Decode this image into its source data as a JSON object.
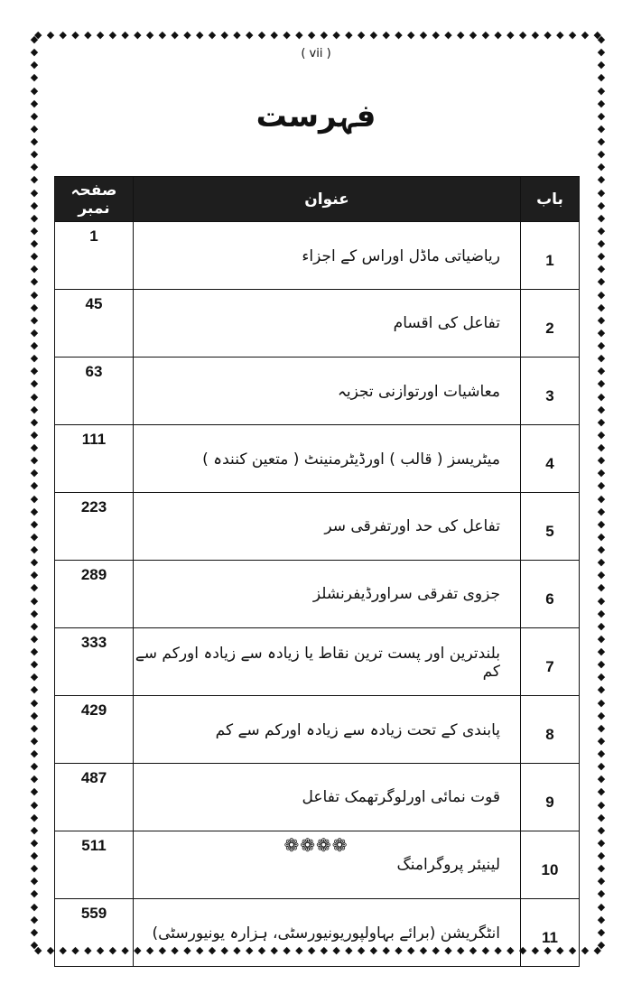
{
  "page_number": "( vii )",
  "title": "فہرست",
  "table": {
    "headers": {
      "page": "صفحہ نمبر",
      "title": "عنوان",
      "chapter": "باب"
    },
    "rows": [
      {
        "chapter": "1",
        "title": "ریاضیاتی ماڈل اوراس کے اجزاء",
        "page": "1"
      },
      {
        "chapter": "2",
        "title": "تفاعل کی اقسام",
        "page": "45"
      },
      {
        "chapter": "3",
        "title": "معاشیات اورتوازنی تجزیہ",
        "page": "63"
      },
      {
        "chapter": "4",
        "title": "میٹریسز ( قالب ) اورڈیٹرمنینٹ ( متعین کنندہ )",
        "page": "111"
      },
      {
        "chapter": "5",
        "title": "تفاعل کی حد اورتفرقی سر",
        "page": "223"
      },
      {
        "chapter": "6",
        "title": "جزوی تفرقی سراورڈیفرنشلز",
        "page": "289"
      },
      {
        "chapter": "7",
        "title": "بلندترین اور پست ترین نقاط یا زیادہ سے زیادہ اورکم سے کم",
        "page": "333"
      },
      {
        "chapter": "8",
        "title": "پابندی کے تحت زیادہ سے زیادہ اورکم سے کم",
        "page": "429"
      },
      {
        "chapter": "9",
        "title": "قوت نمائی اورلوگرتھمک تفاعل",
        "page": "487"
      },
      {
        "chapter": "10",
        "title": "لینیئر پروگرامنگ",
        "page": "511"
      },
      {
        "chapter": "11",
        "title": "انٹگریشن     (برائے بہاولپوریونیورسٹی، ہزارہ یونیورسٹی)",
        "page": "559"
      }
    ]
  },
  "ornament": "❁❁❁❁",
  "border_icon": "diamond-chain"
}
